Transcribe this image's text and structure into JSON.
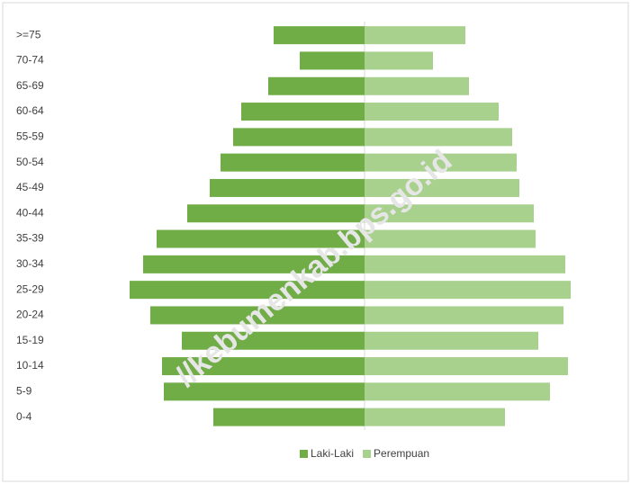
{
  "chart_data": {
    "type": "pyramid",
    "categories": [
      ">=75",
      "70-74",
      "65-69",
      "60-64",
      "55-59",
      "50-54",
      "45-49",
      "40-44",
      "35-39",
      "30-34",
      "25-29",
      "20-24",
      "15-19",
      "10-14",
      "5-9",
      "0-4"
    ],
    "series": [
      {
        "name": "Laki-Laki",
        "color": "#70ad47",
        "values": [
          101,
          72,
          107,
          137,
          146,
          160,
          172,
          197,
          231,
          246,
          261,
          238,
          203,
          225,
          223,
          168
        ]
      },
      {
        "name": "Perempuan",
        "color": "#a9d18e",
        "values": [
          112,
          76,
          116,
          149,
          164,
          169,
          172,
          188,
          190,
          223,
          229,
          221,
          193,
          226,
          206,
          156
        ]
      }
    ],
    "watermark": "//kebumenkab.bps.go.id"
  }
}
